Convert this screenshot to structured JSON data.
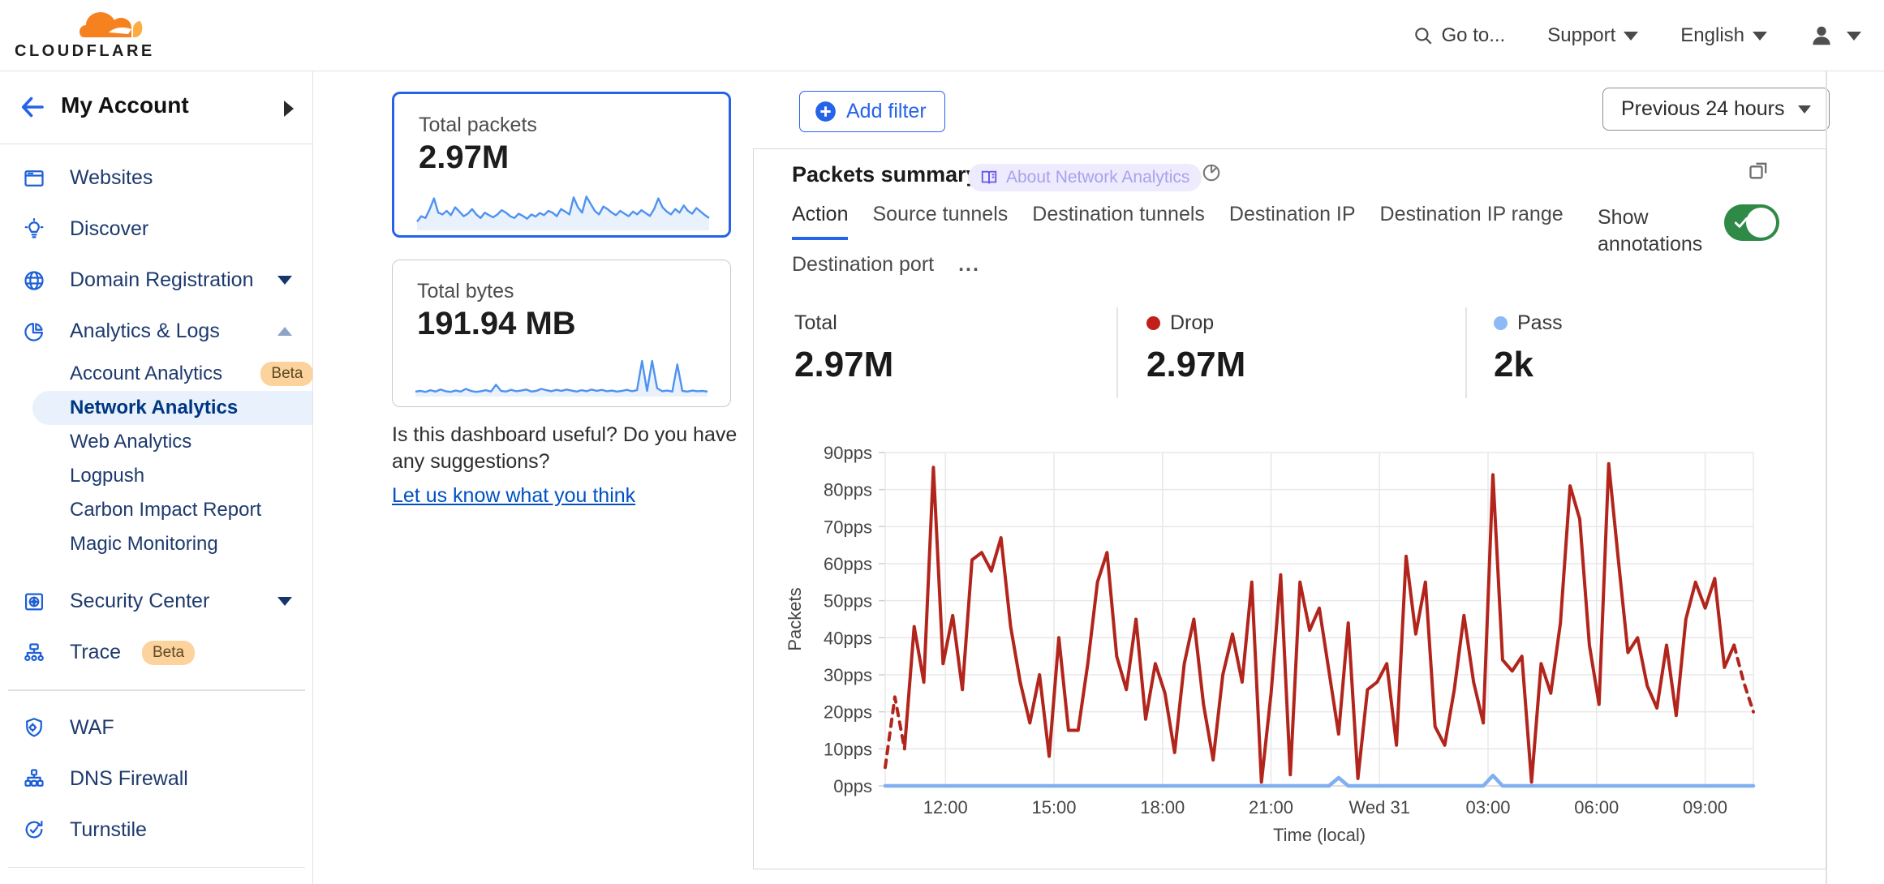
{
  "topnav": {
    "logo_text": "CLOUDFLARE",
    "goto_label": "Go to...",
    "support_label": "Support",
    "language_label": "English"
  },
  "sidebar": {
    "account_label": "My Account",
    "items": [
      {
        "label": "Websites",
        "icon": "browser-window-icon"
      },
      {
        "label": "Discover",
        "icon": "lightbulb-icon"
      },
      {
        "label": "Domain Registration",
        "icon": "globe-icon",
        "chevron": "down"
      },
      {
        "label": "Analytics & Logs",
        "icon": "pie-chart-icon",
        "chevron": "up"
      },
      {
        "label": "Account Analytics",
        "indent": true,
        "badge": "Beta"
      },
      {
        "label": "Network Analytics",
        "indent": true,
        "selected": true
      },
      {
        "label": "Web Analytics",
        "indent": true
      },
      {
        "label": "Logpush",
        "indent": true
      },
      {
        "label": "Carbon Impact Report",
        "indent": true
      },
      {
        "label": "Magic Monitoring",
        "indent": true
      },
      {
        "spacer": true
      },
      {
        "label": "Security Center",
        "icon": "safe-icon",
        "chevron": "down"
      },
      {
        "label": "Trace",
        "icon": "sitemap-icon",
        "badge": "Beta"
      },
      {
        "divider": true
      },
      {
        "label": "WAF",
        "icon": "shield-gear-icon"
      },
      {
        "label": "DNS Firewall",
        "icon": "network-tree-icon"
      },
      {
        "label": "Turnstile",
        "icon": "rotate-check-icon"
      },
      {
        "divider": true
      },
      {
        "label": "",
        "icon": "starburst-icon",
        "partial": true
      }
    ]
  },
  "summary_cards": [
    {
      "label": "Total packets",
      "value": "2.97M"
    },
    {
      "label": "Total bytes",
      "value": "191.94 MB"
    }
  ],
  "feedback": {
    "question": "Is this dashboard useful? Do you have any suggestions?",
    "link_label": "Let us know what you think"
  },
  "toolbar": {
    "add_filter_label": "Add filter",
    "time_range_label": "Previous 24 hours"
  },
  "panel": {
    "title": "Packets summary",
    "about_badge_label": "About Network Analytics",
    "show_annotations_label": "Show annotations",
    "annotations_on": true,
    "tabs": [
      {
        "label": "Action",
        "active": true
      },
      {
        "label": "Source tunnels"
      },
      {
        "label": "Destination tunnels"
      },
      {
        "label": "Destination IP"
      },
      {
        "label": "Destination IP range"
      },
      {
        "label": "Destination port"
      },
      {
        "label": "...",
        "more": true
      }
    ],
    "stats": [
      {
        "label": "Total",
        "value": "2.97M",
        "dot_color": ""
      },
      {
        "label": "Drop",
        "value": "2.97M",
        "dot_color": "#c11f1a"
      },
      {
        "label": "Pass",
        "value": "2k",
        "dot_color": "#8cbaf7"
      }
    ]
  },
  "colors": {
    "accent_blue": "#2563eb",
    "link_blue": "#0051c3",
    "sidebar_navy": "#1e3a6e",
    "drop_red": "#b2251c",
    "pass_blue": "#7fb0ef",
    "spark_blue": "#4f92f0",
    "toggle_green": "#2e8a46",
    "beta_badge_bg": "#fcd29d",
    "about_badge_bg": "#edebfd"
  },
  "chart_data": {
    "main_chart": {
      "type": "line",
      "title": "Packets summary",
      "ylabel": "Packets",
      "xlabel": "Time (local)",
      "ymax": 90,
      "ytick_labels": [
        "0pps",
        "10pps",
        "20pps",
        "30pps",
        "40pps",
        "50pps",
        "60pps",
        "70pps",
        "80pps",
        "90pps"
      ],
      "xticks": [
        {
          "label": "12:00",
          "f": 0.0694
        },
        {
          "label": "15:00",
          "f": 0.1944
        },
        {
          "label": "18:00",
          "f": 0.3194
        },
        {
          "label": "21:00",
          "f": 0.4444
        },
        {
          "label": "Wed 31",
          "f": 0.5694
        },
        {
          "label": "03:00",
          "f": 0.6944
        },
        {
          "label": "06:00",
          "f": 0.8194
        },
        {
          "label": "09:00",
          "f": 0.9444
        }
      ],
      "series": [
        {
          "name": "Drop",
          "color": "#b2251c"
        },
        {
          "name": "Pass",
          "color": "#7fb0ef"
        }
      ],
      "drop_values": [
        5,
        24,
        10,
        43,
        28,
        86,
        33,
        46,
        26,
        61,
        63,
        58,
        67,
        43,
        28,
        17,
        30,
        8,
        40,
        15,
        15,
        33,
        55,
        63,
        35,
        26,
        45,
        18,
        33,
        25,
        9,
        33,
        45,
        22,
        7,
        30,
        41,
        28,
        55,
        1,
        25,
        57,
        3,
        55,
        42,
        48,
        31,
        14,
        44,
        2,
        26,
        28,
        33,
        11,
        62,
        41,
        55,
        16,
        11,
        26,
        46,
        28,
        17,
        84,
        34,
        31,
        35,
        1,
        33,
        25,
        44,
        81,
        72,
        38,
        22,
        87,
        61,
        36,
        40,
        27,
        21,
        38,
        19,
        45,
        55,
        48,
        56,
        32,
        38,
        28,
        20
      ],
      "pass_series": {
        "baseline": 0,
        "bumps": [
          [
            47,
            2.2
          ],
          [
            63,
            2.8
          ]
        ]
      },
      "dashed_head_points": 3,
      "dashed_tail_points": 3,
      "grid": true
    },
    "packets_sparkline": {
      "type": "line",
      "values": [
        20,
        35,
        30,
        55,
        85,
        45,
        40,
        50,
        38,
        60,
        48,
        35,
        42,
        55,
        40,
        30,
        45,
        38,
        32,
        40,
        52,
        45,
        35,
        30,
        42,
        36,
        28,
        40,
        34,
        44,
        38,
        50,
        45,
        35,
        55,
        48,
        40,
        88,
        60,
        45,
        90,
        70,
        50,
        40,
        62,
        55,
        45,
        38,
        50,
        42,
        35,
        48,
        40,
        52,
        44,
        36,
        55,
        85,
        60,
        48,
        40,
        55,
        45,
        65,
        50,
        42,
        58,
        48,
        38,
        30
      ],
      "max": 100
    },
    "bytes_sparkline": {
      "type": "line",
      "values": [
        10,
        12,
        9,
        14,
        10,
        16,
        11,
        9,
        13,
        10,
        18,
        12,
        9,
        11,
        14,
        10,
        30,
        12,
        10,
        15,
        11,
        13,
        16,
        10,
        12,
        18,
        14,
        11,
        15,
        12,
        16,
        13,
        10,
        14,
        11,
        16,
        12,
        15,
        11,
        13,
        10,
        12,
        15,
        11,
        14,
        100,
        12,
        100,
        20,
        11,
        13,
        10,
        90,
        12,
        10,
        13,
        11,
        12,
        10
      ],
      "max": 105
    }
  }
}
